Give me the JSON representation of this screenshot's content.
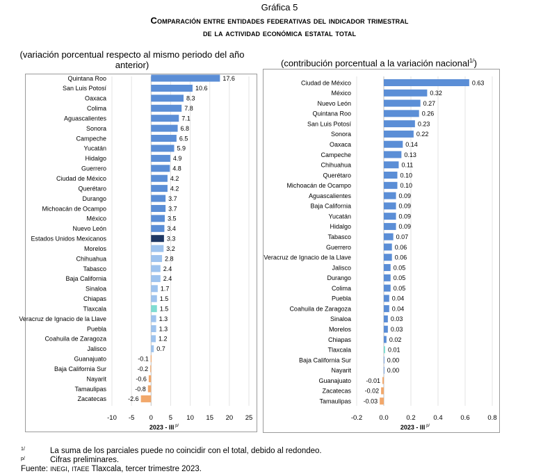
{
  "header": {
    "number": "Gráfica 5",
    "title_line1": "Comparación entre entidades federativas del indicador trimestral",
    "title_line2": "de la actividad económica estatal total"
  },
  "colors": {
    "bar_blue": "#5b8ed6",
    "bar_light_blue": "#9ec3ee",
    "bar_national": "#1f3864",
    "bar_highlight": "#7fdcd2",
    "bar_orange": "#f2a86b",
    "grid": "#e3e3e3",
    "axis": "#bfbfbf"
  },
  "chart_data": [
    {
      "type": "bar",
      "orientation": "horizontal",
      "title": "(variación porcentual respecto al mismo periodo del año anterior)",
      "xlabel": "2023 - III",
      "xlabel_sup": "p/",
      "xlim": [
        -10,
        25
      ],
      "xticks": [
        -10,
        -5,
        0,
        5,
        10,
        15,
        20,
        25
      ],
      "grid": true,
      "categories": [
        "Quintana Roo",
        "San Luis Potosí",
        "Oaxaca",
        "Colima",
        "Aguascalientes",
        "Sonora",
        "Campeche",
        "Yucatán",
        "Hidalgo",
        "Guerrero",
        "Ciudad de México",
        "Querétaro",
        "Durango",
        "Michoacán de Ocampo",
        "México",
        "Nuevo León",
        "Estados Unidos Mexicanos",
        "Morelos",
        "Chihuahua",
        "Tabasco",
        "Baja California",
        "Sinaloa",
        "Chiapas",
        "Tlaxcala",
        "Veracruz de Ignacio de la Llave",
        "Puebla",
        "Coahuila de Zaragoza",
        "Jalisco",
        "Guanajuato",
        "Baja California Sur",
        "Nayarit",
        "Tamaulipas",
        "Zacatecas"
      ],
      "values": [
        17.6,
        10.6,
        8.3,
        7.8,
        7.1,
        6.8,
        6.5,
        5.9,
        4.9,
        4.8,
        4.2,
        4.2,
        3.7,
        3.7,
        3.5,
        3.4,
        3.3,
        3.2,
        2.8,
        2.4,
        2.4,
        1.7,
        1.5,
        1.5,
        1.3,
        1.3,
        1.2,
        0.7,
        -0.1,
        -0.2,
        -0.6,
        -0.8,
        -2.6
      ],
      "labels": [
        "17.6",
        "10.6",
        "8.3",
        "7.8",
        "7.1",
        "6.8",
        "6.5",
        "5.9",
        "4.9",
        "4.8",
        "4.2",
        "4.2",
        "3.7",
        "3.7",
        "3.5",
        "3.4",
        "3.3",
        "3.2",
        "2.8",
        "2.4",
        "2.4",
        "1.7",
        "1.5",
        "1.5",
        "1.3",
        "1.3",
        "1.2",
        "0.7",
        "-0.1",
        "-0.2",
        "-0.6",
        "-0.8",
        "-2.6"
      ],
      "bar_colors": [
        "#5b8ed6",
        "#5b8ed6",
        "#5b8ed6",
        "#5b8ed6",
        "#5b8ed6",
        "#5b8ed6",
        "#5b8ed6",
        "#5b8ed6",
        "#5b8ed6",
        "#5b8ed6",
        "#5b8ed6",
        "#5b8ed6",
        "#5b8ed6",
        "#5b8ed6",
        "#5b8ed6",
        "#5b8ed6",
        "#1f3864",
        "#9ec3ee",
        "#9ec3ee",
        "#9ec3ee",
        "#9ec3ee",
        "#9ec3ee",
        "#9ec3ee",
        "#7fdcd2",
        "#9ec3ee",
        "#9ec3ee",
        "#9ec3ee",
        "#9ec3ee",
        "#f2a86b",
        "#f2a86b",
        "#f2a86b",
        "#f2a86b",
        "#f2a86b"
      ]
    },
    {
      "type": "bar",
      "orientation": "horizontal",
      "title": "(contribución porcentual a la variación nacional",
      "title_sup": "1/",
      "title_close": ")",
      "xlabel": "2023 - III",
      "xlabel_sup": "p/",
      "xlim": [
        -0.2,
        0.8
      ],
      "xticks": [
        -0.2,
        0.0,
        0.2,
        0.4,
        0.6,
        0.8
      ],
      "xtick_labels": [
        "-0.2",
        "0.0",
        "0.2",
        "0.4",
        "0.6",
        "0.8"
      ],
      "grid": true,
      "categories": [
        "Ciudad de México",
        "México",
        "Nuevo León",
        "Quintana Roo",
        "San Luis Potosí",
        "Sonora",
        "Oaxaca",
        "Campeche",
        "Chihuahua",
        "Querétaro",
        "Michoacán de Ocampo",
        "Aguascalientes",
        "Baja California",
        "Yucatán",
        "Hidalgo",
        "Tabasco",
        "Guerrero",
        "Veracruz de Ignacio de la Llave",
        "Jalisco",
        "Durango",
        "Colima",
        "Puebla",
        "Coahuila de Zaragoza",
        "Sinaloa",
        "Morelos",
        "Chiapas",
        "Tlaxcala",
        "Baja California Sur",
        "Nayarit",
        "Guanajuato",
        "Zacatecas",
        "Tamaulipas"
      ],
      "values": [
        0.63,
        0.32,
        0.27,
        0.26,
        0.23,
        0.22,
        0.14,
        0.13,
        0.11,
        0.1,
        0.1,
        0.09,
        0.09,
        0.09,
        0.09,
        0.07,
        0.06,
        0.06,
        0.05,
        0.05,
        0.05,
        0.04,
        0.04,
        0.03,
        0.03,
        0.02,
        0.01,
        0.0,
        0.0,
        -0.01,
        -0.02,
        -0.03
      ],
      "labels": [
        "0.63",
        "0.32",
        "0.27",
        "0.26",
        "0.23",
        "0.22",
        "0.14",
        "0.13",
        "0.11",
        "0.10",
        "0.10",
        "0.09",
        "0.09",
        "0.09",
        "0.09",
        "0.07",
        "0.06",
        "0.06",
        "0.05",
        "0.05",
        "0.05",
        "0.04",
        "0.04",
        "0.03",
        "0.03",
        "0.02",
        "0.01",
        "0.00",
        "0.00",
        "-0.01",
        "-0.02",
        "-0.03"
      ],
      "bar_colors": [
        "#5b8ed6",
        "#5b8ed6",
        "#5b8ed6",
        "#5b8ed6",
        "#5b8ed6",
        "#5b8ed6",
        "#5b8ed6",
        "#5b8ed6",
        "#5b8ed6",
        "#5b8ed6",
        "#5b8ed6",
        "#5b8ed6",
        "#5b8ed6",
        "#5b8ed6",
        "#5b8ed6",
        "#5b8ed6",
        "#5b8ed6",
        "#5b8ed6",
        "#5b8ed6",
        "#5b8ed6",
        "#5b8ed6",
        "#5b8ed6",
        "#5b8ed6",
        "#5b8ed6",
        "#5b8ed6",
        "#5b8ed6",
        "#7fdcd2",
        "#5b8ed6",
        "#5b8ed6",
        "#f2a86b",
        "#f2a86b",
        "#f2a86b"
      ]
    }
  ],
  "footnotes": {
    "fn1_mark": "1/",
    "fn1_text": "La suma de los parciales puede no coincidir con el total, debido al redondeo.",
    "fn2_mark": "p/",
    "fn2_text": "Cifras preliminares.",
    "source_prefix": "Fuente: ",
    "source_org1": "INEGI",
    "source_sep": ", ",
    "source_org2": "ITAEE",
    "source_rest": " Tlaxcala, tercer trimestre 2023."
  }
}
